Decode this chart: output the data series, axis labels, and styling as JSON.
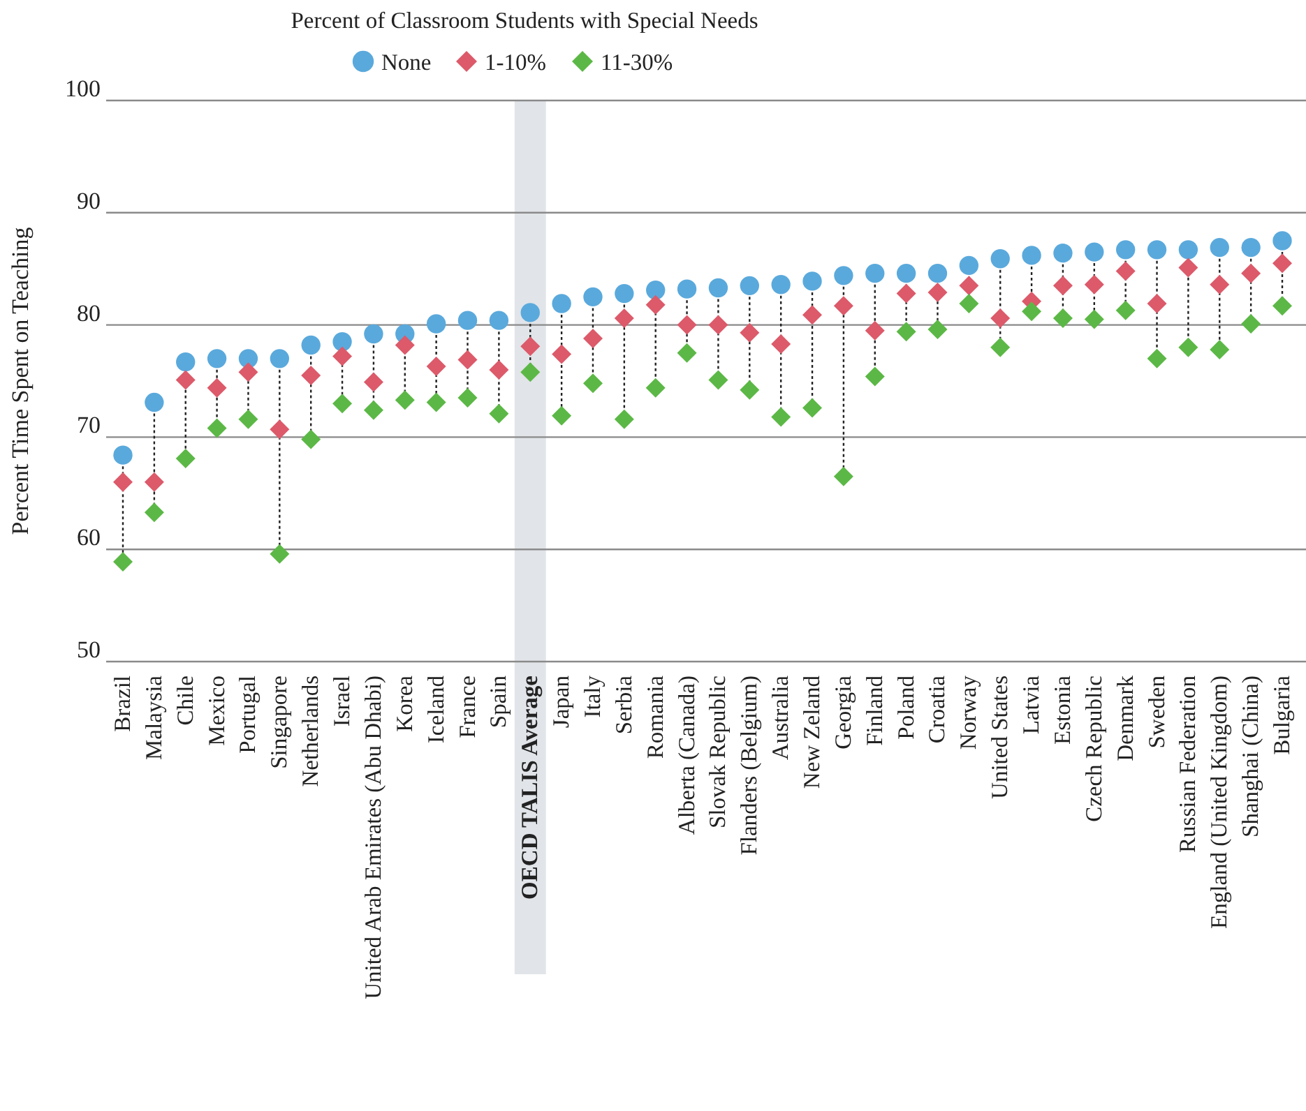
{
  "chart_data": {
    "type": "scatter",
    "legend_title": "Percent of Classroom Students with Special Needs",
    "ylabel": "Percent Time Spent on Teaching",
    "categories": [
      "Brazil",
      "Malaysia",
      "Chile",
      "Mexico",
      "Portugal",
      "Singapore",
      "Netherlands",
      "Israel",
      "United Arab Emirates (Abu Dhabi)",
      "Korea",
      "Iceland",
      "France",
      "Spain",
      "OECD TALIS Average",
      "Japan",
      "Italy",
      "Serbia",
      "Romania",
      "Alberta (Canada)",
      "Slovak Republic",
      "Flanders (Belgium)",
      "Australia",
      "New Zeland",
      "Georgia",
      "Finland",
      "Poland",
      "Croatia",
      "Norway",
      "United States",
      "Latvia",
      "Estonia",
      "Czech Republic",
      "Denmark",
      "Sweden",
      "Russian Federation",
      "England (United Kingdom)",
      "Shanghai (China)",
      "Bulgaria"
    ],
    "series": [
      {
        "name": "None",
        "color": "#5aa9dc",
        "marker": "circle",
        "values": [
          68.4,
          73.1,
          76.7,
          77.0,
          77.0,
          77.0,
          78.2,
          78.5,
          79.2,
          79.2,
          80.1,
          80.4,
          80.4,
          81.1,
          81.9,
          82.5,
          82.8,
          83.1,
          83.2,
          83.3,
          83.5,
          83.6,
          83.9,
          84.4,
          84.6,
          84.6,
          84.6,
          85.3,
          85.9,
          86.2,
          86.4,
          86.5,
          86.7,
          86.7,
          86.7,
          86.9,
          86.9,
          87.5
        ]
      },
      {
        "name": "1-10%",
        "color": "#dc5a6a",
        "marker": "diamond",
        "values": [
          66.0,
          66.0,
          75.1,
          74.4,
          75.8,
          70.7,
          75.5,
          77.2,
          74.9,
          78.2,
          76.3,
          76.9,
          76.0,
          78.1,
          77.4,
          78.8,
          80.6,
          81.8,
          80.0,
          80.0,
          79.3,
          78.3,
          80.9,
          81.7,
          79.5,
          82.8,
          82.9,
          83.5,
          80.6,
          82.1,
          83.5,
          83.6,
          84.8,
          81.9,
          85.1,
          83.6,
          84.6,
          85.5
        ]
      },
      {
        "name": "11-30%",
        "color": "#5cb846",
        "marker": "diamond",
        "values": [
          58.9,
          63.3,
          68.1,
          70.8,
          71.6,
          59.6,
          69.8,
          73.0,
          72.4,
          73.3,
          73.1,
          73.5,
          72.1,
          75.8,
          71.9,
          74.8,
          71.6,
          74.4,
          77.5,
          75.1,
          74.2,
          71.8,
          72.6,
          66.5,
          75.4,
          79.4,
          79.6,
          81.9,
          78.0,
          81.2,
          80.6,
          80.5,
          81.3,
          77.0,
          78.0,
          77.8,
          80.1,
          81.7
        ]
      }
    ],
    "ylim": [
      50,
      100
    ],
    "yticks": [
      50,
      60,
      70,
      80,
      90,
      100
    ],
    "grid": "y",
    "legend": "top",
    "line_style": "dotted",
    "bands": [
      {
        "axis": "x",
        "from": "OECD TALIS Average",
        "to": "OECD TALIS Average",
        "color": "#e1e4e8"
      }
    ]
  }
}
